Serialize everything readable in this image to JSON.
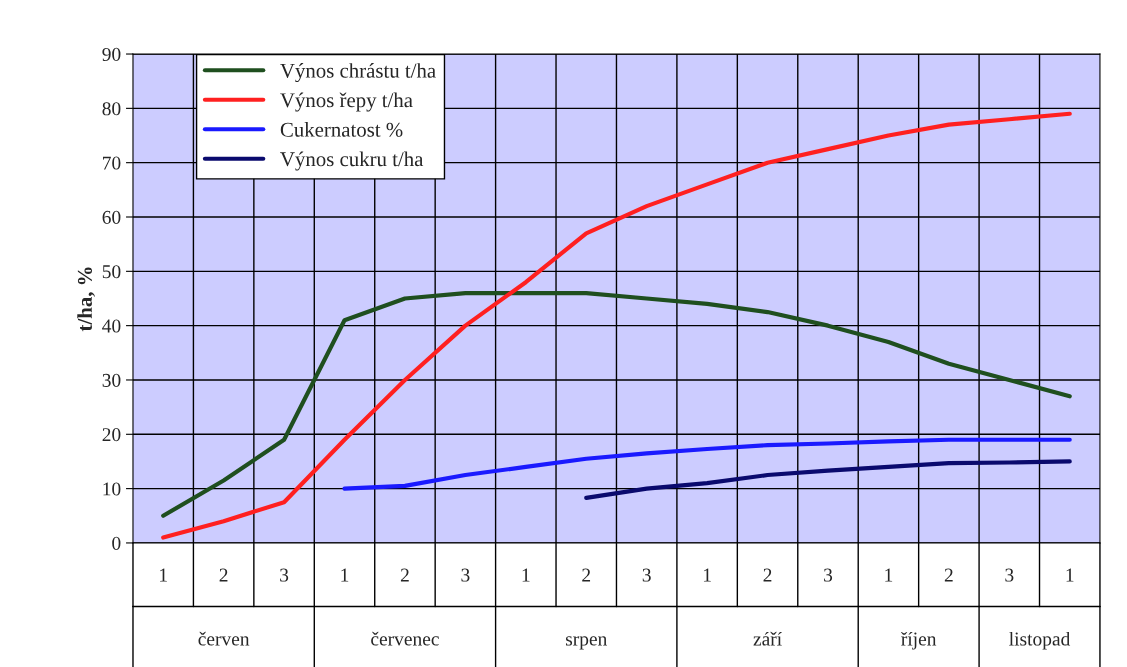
{
  "chart_data": {
    "type": "line",
    "ylabel": "t/ha, %",
    "categories": [
      "1",
      "2",
      "3",
      "1",
      "2",
      "3",
      "1",
      "2",
      "3",
      "1",
      "2",
      "3",
      "1",
      "2",
      "3",
      "1"
    ],
    "annotations": [
      "červen",
      "červenec",
      "srpen",
      "září",
      "říjen",
      "listopad"
    ],
    "series": [
      {
        "name": "Výnos chrástu t/ha",
        "color": "#1f4f1f",
        "values": [
          5,
          11.5,
          19,
          41,
          45,
          46,
          46,
          46,
          45,
          44,
          42.5,
          40,
          37,
          33,
          30,
          27
        ]
      },
      {
        "name": "Výnos řepy t/ha",
        "color": "#ff2020",
        "values": [
          1,
          4,
          7.5,
          19,
          30,
          40,
          48,
          57,
          62,
          66,
          70,
          72.5,
          75,
          77,
          78,
          79
        ]
      },
      {
        "name": "Cukernatost %",
        "color": "#1a1aff",
        "values": [
          null,
          null,
          null,
          10,
          10.5,
          12.5,
          14,
          15.5,
          16.5,
          17.3,
          18,
          18.3,
          18.7,
          19,
          19,
          19
        ]
      },
      {
        "name": "Výnos cukru t/ha",
        "color": "#0a0a6e",
        "values": [
          null,
          null,
          null,
          null,
          null,
          null,
          null,
          8.3,
          10,
          11,
          12.5,
          13.3,
          14,
          14.7,
          14.8,
          15
        ]
      }
    ],
    "ylim": [
      0,
      90
    ],
    "yticks": [
      0,
      10,
      20,
      30,
      40,
      50,
      60,
      70,
      80,
      90
    ],
    "grid": true,
    "legend": "top left",
    "marker": "none",
    "line_style": "solid"
  }
}
